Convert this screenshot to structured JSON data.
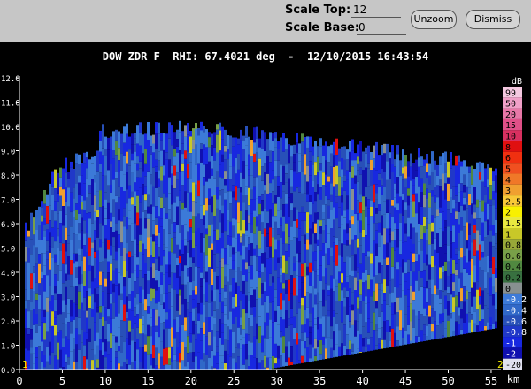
{
  "toolbar": {
    "scale_top_label": "Scale Top:",
    "scale_top_value": "12",
    "scale_base_label": "Scale Base:",
    "scale_base_value": "0",
    "buttons": [
      "Unzoom",
      "Dismiss"
    ]
  },
  "plot": {
    "title": "DOW ZDR F  RHI: 67.4021 deg  -  12/10/2015 16:43:54",
    "y_ticks": [
      "0.0",
      "1.0",
      "2.0",
      "3.0",
      "4.0",
      "5.0",
      "6.0",
      "7.0",
      "8.0",
      "9.0",
      "10.0",
      "11.0",
      "12.0"
    ],
    "x_ticks": [
      "0",
      "5",
      "10",
      "15",
      "20",
      "25",
      "30",
      "35",
      "40",
      "45",
      "50",
      "55"
    ],
    "x_unit": "km",
    "markers": [
      "1",
      "2"
    ]
  },
  "colorbar": {
    "unit": "dB",
    "items": [
      {
        "label": "99",
        "color": "#f4c8e0"
      },
      {
        "label": "50",
        "color": "#f0a0c8"
      },
      {
        "label": "20",
        "color": "#e878a8"
      },
      {
        "label": "15",
        "color": "#e05088"
      },
      {
        "label": "10",
        "color": "#d83060"
      },
      {
        "label": "8",
        "color": "#e01010"
      },
      {
        "label": "6",
        "color": "#f03010"
      },
      {
        "label": "5",
        "color": "#f05020"
      },
      {
        "label": "4",
        "color": "#f07828"
      },
      {
        "label": "3",
        "color": "#f0a030"
      },
      {
        "label": "2.5",
        "color": "#f8c838"
      },
      {
        "label": "2",
        "color": "#f8f000"
      },
      {
        "label": "1.5",
        "color": "#e8e840"
      },
      {
        "label": "1",
        "color": "#c8c828"
      },
      {
        "label": "0.8",
        "color": "#98a838"
      },
      {
        "label": "0.6",
        "color": "#78a048"
      },
      {
        "label": "0.4",
        "color": "#508840"
      },
      {
        "label": "0.2",
        "color": "#387040"
      },
      {
        "label": "0",
        "color": "#889090"
      },
      {
        "label": "-0.2",
        "color": "#3c7ad8"
      },
      {
        "label": "-0.4",
        "color": "#3068c8"
      },
      {
        "label": "-0.6",
        "color": "#2850b8"
      },
      {
        "label": "-0.8",
        "color": "#2038c8"
      },
      {
        "label": "-1",
        "color": "#1828e0"
      },
      {
        "label": "-2",
        "color": "#1010b0"
      },
      {
        "label": "-20",
        "color": "#e0e0f0"
      }
    ]
  }
}
